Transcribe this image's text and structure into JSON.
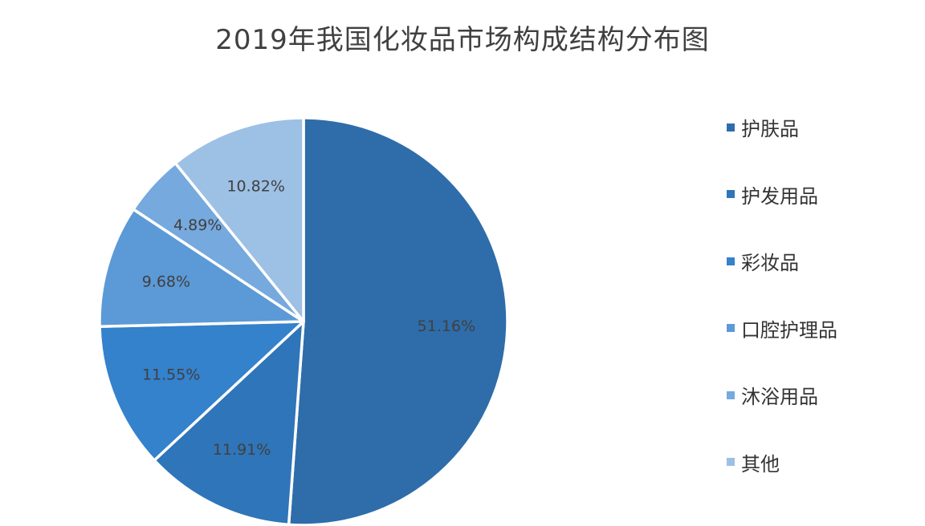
{
  "chart_data": {
    "type": "pie",
    "title": "2019年我国化妆品市场构成结构分布图",
    "legend_position": "right",
    "start_angle_deg": 0,
    "direction": "clockwise",
    "slices": [
      {
        "name": "护肤品",
        "value": 51.16,
        "label": "51.16%",
        "color": "#2E6DAA"
      },
      {
        "name": "护发用品",
        "value": 11.91,
        "label": "11.91%",
        "color": "#2F75B9"
      },
      {
        "name": "彩妆品",
        "value": 11.55,
        "label": "11.55%",
        "color": "#3481CC"
      },
      {
        "name": "口腔护理品",
        "value": 9.68,
        "label": "9.68%",
        "color": "#5B9AD6"
      },
      {
        "name": "沐浴用品",
        "value": 4.89,
        "label": "4.89%",
        "color": "#76A9DD"
      },
      {
        "name": "其他",
        "value": 10.82,
        "label": "10.82%",
        "color": "#9DC0E5"
      }
    ]
  }
}
